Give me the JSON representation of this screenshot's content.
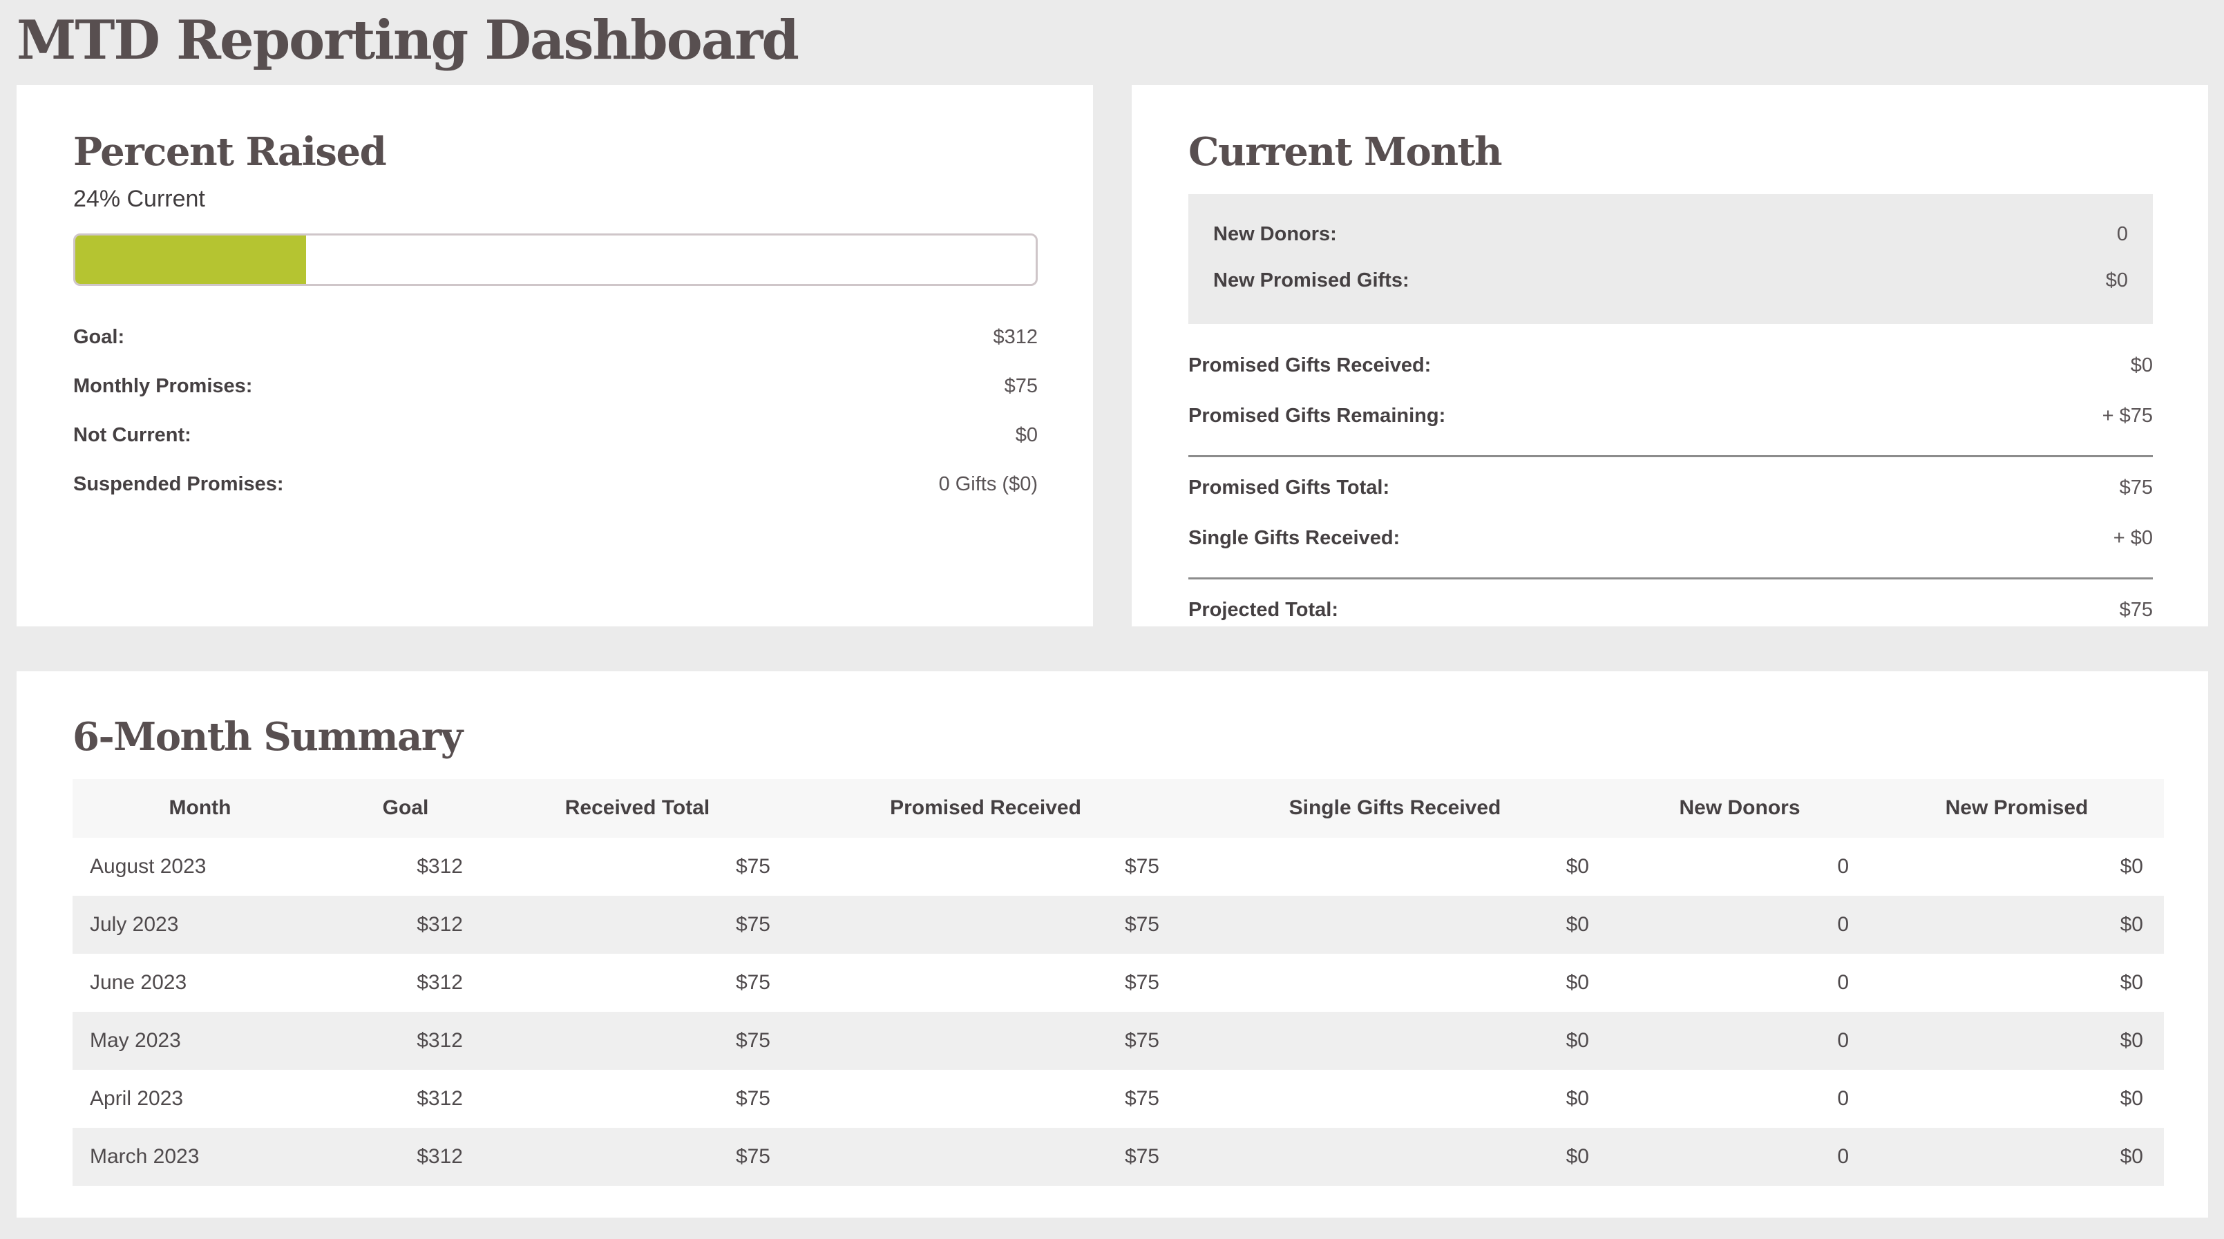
{
  "page": {
    "title": "MTD Reporting Dashboard"
  },
  "colors": {
    "page_background": "#ebebeb",
    "card_background": "#ffffff",
    "heading_text": "#584f50",
    "accent_green": "#b5c431",
    "progress_border": "#cfc6c9",
    "table_header_bg": "#f7f7f7",
    "table_alt_row_bg": "#efefef",
    "divider": "#8c8c8c"
  },
  "percent_raised": {
    "heading": "Percent Raised",
    "percent_value": 24,
    "percent_label": "24% Current",
    "stats": [
      {
        "label": "Goal:",
        "value": "$312"
      },
      {
        "label": "Monthly Promises:",
        "value": "$75"
      },
      {
        "label": "Not Current:",
        "value": "$0"
      },
      {
        "label": "Suspended Promises:",
        "value": "0 Gifts ($0)"
      }
    ]
  },
  "current_month": {
    "heading": "Current Month",
    "highlight_stats": [
      {
        "label": "New Donors:",
        "value": "0"
      },
      {
        "label": "New Promised Gifts:",
        "value": "$0"
      }
    ],
    "ledger_top": [
      {
        "label": "Promised Gifts Received:",
        "value": "$0"
      },
      {
        "label": "Promised Gifts Remaining:",
        "value": "+ $75"
      }
    ],
    "ledger_mid": [
      {
        "label": "Promised Gifts Total:",
        "value": "$75"
      },
      {
        "label": "Single Gifts Received:",
        "value": "+ $0"
      }
    ],
    "ledger_bottom": [
      {
        "label": "Projected Total:",
        "value": "$75"
      }
    ]
  },
  "summary": {
    "heading": "6-Month Summary",
    "table": {
      "columns": [
        "Month",
        "Goal",
        "Received Total",
        "Promised Received",
        "Single Gifts Received",
        "New Donors",
        "New Promised"
      ],
      "rows": [
        [
          "August 2023",
          "$312",
          "$75",
          "$75",
          "$0",
          "0",
          "$0"
        ],
        [
          "July 2023",
          "$312",
          "$75",
          "$75",
          "$0",
          "0",
          "$0"
        ],
        [
          "June 2023",
          "$312",
          "$75",
          "$75",
          "$0",
          "0",
          "$0"
        ],
        [
          "May 2023",
          "$312",
          "$75",
          "$75",
          "$0",
          "0",
          "$0"
        ],
        [
          "April 2023",
          "$312",
          "$75",
          "$75",
          "$0",
          "0",
          "$0"
        ],
        [
          "March 2023",
          "$312",
          "$75",
          "$75",
          "$0",
          "0",
          "$0"
        ]
      ]
    }
  }
}
